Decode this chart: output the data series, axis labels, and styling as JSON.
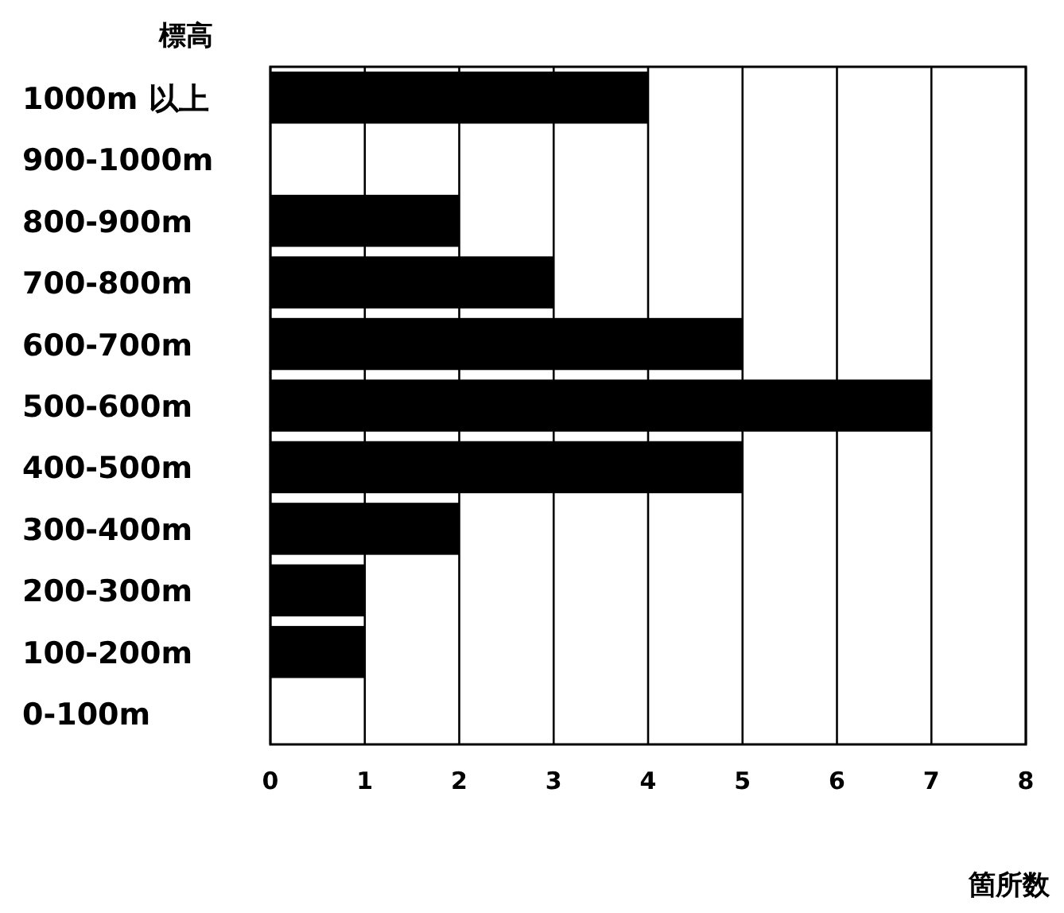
{
  "chart_data": {
    "type": "bar",
    "orientation": "horizontal",
    "ylabel": "標高",
    "xlabel": "箇所数",
    "categories": [
      "1000m 以上",
      "900-1000m",
      "800-900m",
      "700-800m",
      "600-700m",
      "500-600m",
      "400-500m",
      "300-400m",
      "200-300m",
      "100-200m",
      "0-100m"
    ],
    "values": [
      4,
      0,
      2,
      3,
      5,
      7,
      5,
      2,
      1,
      1,
      0
    ],
    "color": "#000000",
    "xlim": [
      0,
      8
    ],
    "xticks": [
      0,
      1,
      2,
      3,
      4,
      5,
      6,
      7,
      8
    ],
    "grid": "x"
  }
}
